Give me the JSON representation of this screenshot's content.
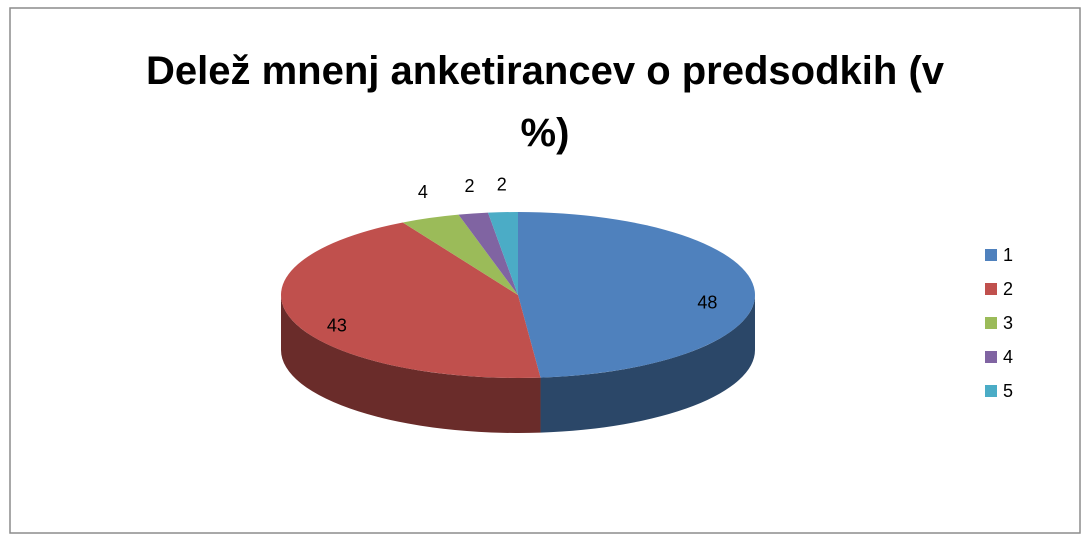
{
  "chart_data": {
    "type": "pie",
    "title": "Delež mnenj anketirancev o predsodkih (v %)",
    "categories": [
      "1",
      "2",
      "3",
      "4",
      "5"
    ],
    "values": [
      48,
      43,
      4,
      2,
      2
    ],
    "colors": [
      "#4f81bd",
      "#c0504d",
      "#9bbb59",
      "#8064a2",
      "#4bacc6"
    ],
    "legend": "right"
  }
}
